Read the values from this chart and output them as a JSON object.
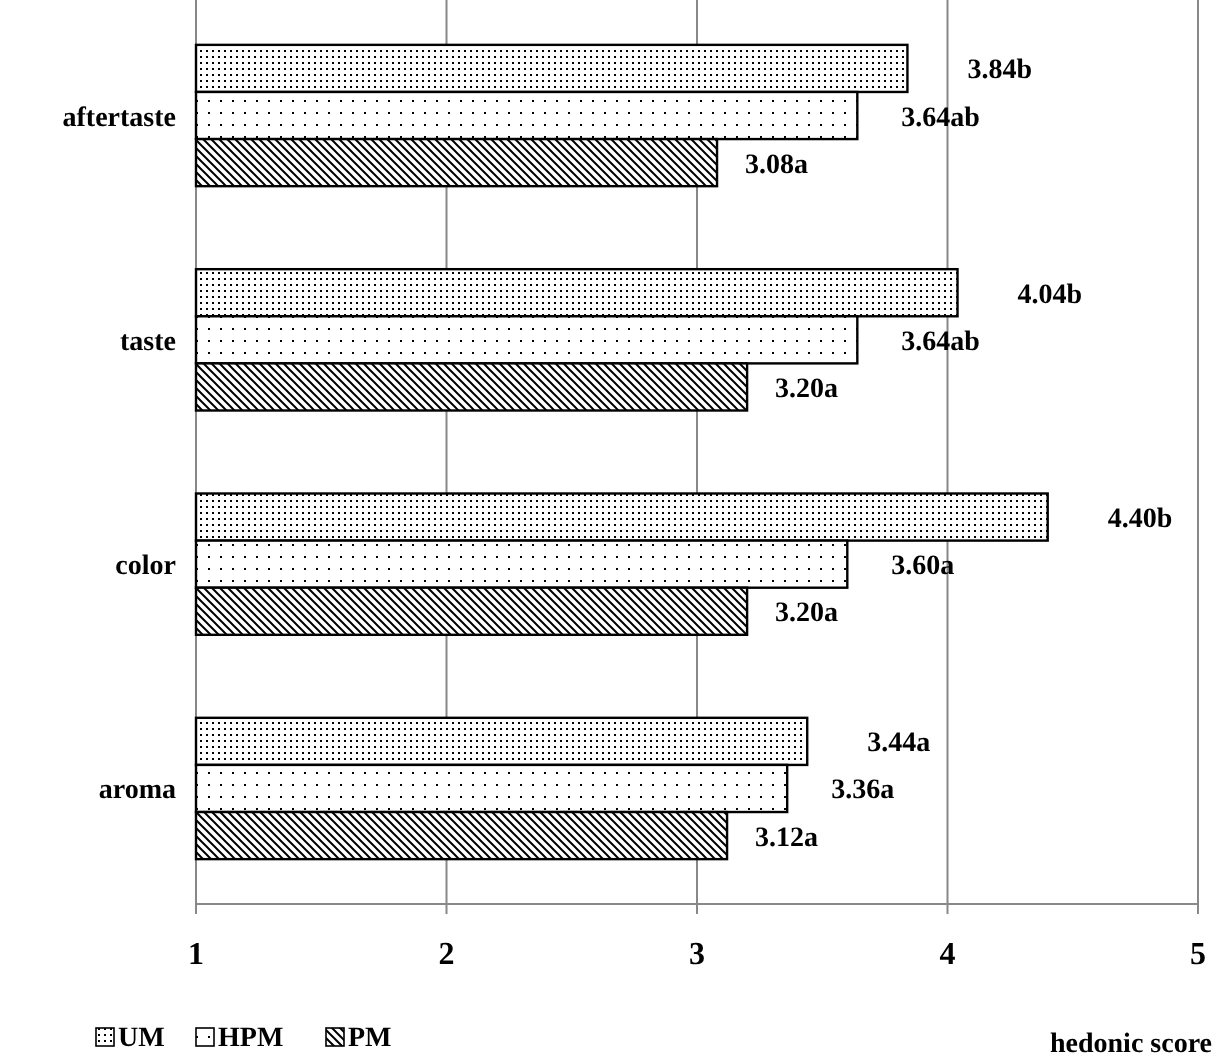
{
  "chart_data": {
    "type": "bar",
    "orientation": "horizontal",
    "categories": [
      "aftertaste",
      "taste",
      "color",
      "aroma"
    ],
    "series": [
      {
        "name": "UM",
        "color": "#000000",
        "values": [
          3.84,
          4.04,
          4.4,
          3.44
        ],
        "value_labels": [
          "3.84b",
          "4.04b",
          "4.40b",
          "3.44a"
        ]
      },
      {
        "name": "HPM",
        "color": "#000000",
        "values": [
          3.64,
          3.64,
          3.6,
          3.36
        ],
        "value_labels": [
          "3.64ab",
          "3.64ab",
          "3.60a",
          "3.36a"
        ]
      },
      {
        "name": "PM",
        "color": "#000000",
        "values": [
          3.08,
          3.2,
          3.2,
          3.12
        ],
        "value_labels": [
          "3.08a",
          "3.20a",
          "3.20a",
          "3.12a"
        ]
      }
    ],
    "xlim": [
      1,
      5
    ],
    "xticks": [
      1,
      2,
      3,
      4,
      5
    ],
    "xlabel": "hedonic score",
    "grid": "x",
    "legend": "bottom left"
  }
}
